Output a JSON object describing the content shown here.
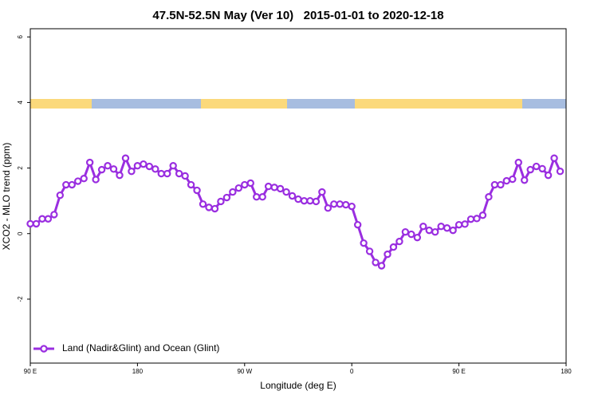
{
  "chart_data": {
    "type": "line",
    "title": "47.5N-52.5N May (Ver 10)   2015-01-01 to 2020-12-18",
    "xlabel": "Longitude (deg E)",
    "ylabel": "XCO2 - MLO trend (ppm)",
    "xlim": [
      90,
      540
    ],
    "ylim": [
      -3.95,
      6.25
    ],
    "xticks": [
      {
        "value": 90,
        "label": "90 E"
      },
      180,
      {
        "value": 270,
        "label": "90 W"
      },
      {
        "value": 360,
        "label": "0"
      },
      {
        "value": 450,
        "label": "90 E"
      },
      {
        "value": 540,
        "label": "180"
      }
    ],
    "yticks": [
      -2,
      0,
      2,
      4,
      6
    ],
    "legend": "bottom-left",
    "x": [
      90,
      95,
      100,
      105,
      110,
      115,
      120,
      125,
      130,
      135,
      140,
      145,
      150,
      155,
      160,
      165,
      170,
      175,
      180,
      185,
      190,
      195,
      200,
      205,
      210,
      215,
      220,
      225,
      230,
      235,
      240,
      245,
      250,
      255,
      260,
      265,
      270,
      275,
      280,
      285,
      290,
      295,
      300,
      305,
      310,
      315,
      320,
      325,
      330,
      335,
      340,
      345,
      350,
      355,
      360,
      365,
      370,
      375,
      380,
      385,
      390,
      395,
      400,
      405,
      410,
      415,
      420,
      425,
      430,
      435,
      440,
      445,
      450,
      455,
      460,
      465,
      470,
      475,
      480,
      485,
      490,
      495,
      500,
      505,
      510,
      515,
      520,
      525,
      530,
      535
    ],
    "series": [
      {
        "name": "Land (Nadir&Glint) and Ocean (Glint)",
        "color": "#9a2ee0",
        "values": [
          0.3,
          0.3,
          0.45,
          0.45,
          0.58,
          1.17,
          1.49,
          1.49,
          1.6,
          1.68,
          2.17,
          1.65,
          1.95,
          2.07,
          1.97,
          1.78,
          2.3,
          1.9,
          2.07,
          2.12,
          2.05,
          1.97,
          1.83,
          1.83,
          2.07,
          1.83,
          1.76,
          1.49,
          1.32,
          0.9,
          0.8,
          0.76,
          0.98,
          1.1,
          1.27,
          1.39,
          1.49,
          1.54,
          1.12,
          1.12,
          1.44,
          1.41,
          1.37,
          1.27,
          1.15,
          1.05,
          1.0,
          1.0,
          0.98,
          1.27,
          0.78,
          0.9,
          0.9,
          0.88,
          0.83,
          0.27,
          -0.29,
          -0.54,
          -0.88,
          -0.98,
          -0.63,
          -0.41,
          -0.24,
          0.05,
          -0.02,
          -0.12,
          0.22,
          0.1,
          0.05,
          0.22,
          0.17,
          0.1,
          0.27,
          0.29,
          0.44,
          0.46,
          0.56,
          1.12,
          1.49,
          1.49,
          1.61,
          1.66,
          2.17,
          1.63,
          1.95,
          2.05,
          1.98,
          1.78,
          2.3,
          1.9
        ]
      }
    ]
  }
}
